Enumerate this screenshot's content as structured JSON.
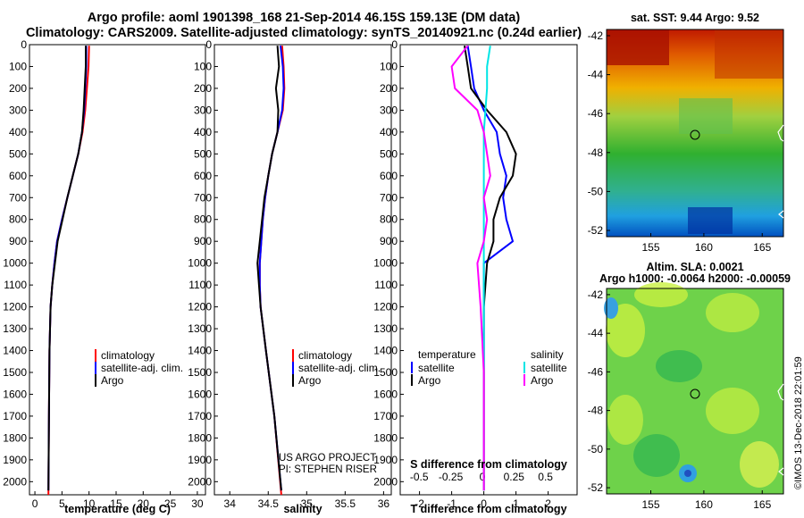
{
  "header": {
    "line1": "Argo profile: aoml 1901398_168 21-Sep-2014 46.15S 159.13E (DM data)",
    "line2": "Climatology: CARS2009. Satellite-adjusted climatology: synTS_20140921.nc (0.24d earlier)"
  },
  "colors": {
    "climatology": "#ff0000",
    "satellite": "#0000ff",
    "argo": "#000000",
    "satellite_salinity": "#00e5e5",
    "argo_salinity_diff": "#ff00ff"
  },
  "depth_axis": {
    "ylim": [
      0,
      2060
    ],
    "ticks": [
      0,
      100,
      200,
      300,
      400,
      500,
      600,
      700,
      800,
      900,
      1000,
      1100,
      1200,
      1300,
      1400,
      1500,
      1600,
      1700,
      1800,
      1900,
      2000
    ],
    "tick_labels": [
      "0",
      "100",
      "200",
      "300",
      "400",
      "500",
      "600",
      "700",
      "800",
      "900",
      "1000",
      "1100",
      "1200",
      "1300",
      "1400",
      "1500",
      "1600",
      "1700",
      "1800",
      "1900",
      "2000"
    ]
  },
  "legend_profile": [
    "climatology",
    "satellite-adj. clim.",
    "Argo"
  ],
  "legend_diff": {
    "temperature_heading": "temperature",
    "salinity_heading": "salinity",
    "items": [
      "satellite",
      "Argo"
    ]
  },
  "credits": {
    "line1": "US ARGO PROJECT",
    "line2": "PI: STEPHEN RISER"
  },
  "map_sst": {
    "title": "sat. SST: 9.44 Argo: 9.52",
    "xticks": [
      "155",
      "160",
      "165"
    ],
    "yticks": [
      "-42",
      "-44",
      "-46",
      "-48",
      "-50",
      "-52"
    ]
  },
  "map_sla": {
    "title1": "Altim. SLA: 0.0021",
    "title2": "Argo h1000: -0.0064 h2000: -0.00059",
    "xticks": [
      "155",
      "160",
      "165"
    ],
    "yticks": [
      "-42",
      "-44",
      "-46",
      "-48",
      "-50",
      "-52"
    ]
  },
  "stamp": "©IMOS 13-Dec-2018 22:01:59",
  "chart_data": [
    {
      "type": "line",
      "xlabel": "temperature (deg C)",
      "ylabel": "",
      "xlim": [
        -1,
        31.5
      ],
      "xticks": [
        0,
        5,
        10,
        15,
        20,
        25,
        30
      ],
      "xtick_labels": [
        "0",
        "5",
        "10",
        "15",
        "20",
        "25",
        "30"
      ],
      "y_reversed": true,
      "series": [
        {
          "name": "climatology",
          "color": "#ff0000",
          "x": [
            10.0,
            9.9,
            9.6,
            9.3,
            8.8,
            8.0,
            7.0,
            6.0,
            5.0,
            4.1,
            3.6,
            3.2,
            2.9,
            2.7,
            2.6,
            2.5
          ],
          "y": [
            5,
            100,
            200,
            300,
            400,
            500,
            600,
            700,
            800,
            900,
            1000,
            1100,
            1200,
            1400,
            1700,
            2060
          ]
        },
        {
          "name": "satellite-adj. clim.",
          "color": "#0000ff",
          "x": [
            9.5,
            9.5,
            9.3,
            9.1,
            8.7,
            8.0,
            7.0,
            6.0,
            5.0,
            4.1,
            3.6,
            3.2,
            2.9,
            2.7,
            2.6,
            2.5
          ],
          "y": [
            5,
            100,
            200,
            300,
            400,
            500,
            600,
            700,
            800,
            900,
            1000,
            1100,
            1200,
            1400,
            1700,
            2040
          ]
        },
        {
          "name": "Argo",
          "color": "#000000",
          "x": [
            9.4,
            9.4,
            9.2,
            9.0,
            8.7,
            8.0,
            7.0,
            6.0,
            5.1,
            4.2,
            3.7,
            3.2,
            2.9,
            2.7,
            2.6,
            2.5
          ],
          "y": [
            5,
            100,
            200,
            300,
            400,
            500,
            600,
            700,
            800,
            900,
            1000,
            1100,
            1200,
            1400,
            1700,
            2040
          ]
        }
      ]
    },
    {
      "type": "line",
      "xlabel": "salinity",
      "ylabel": "",
      "xlim": [
        33.8,
        36.1
      ],
      "xticks": [
        34,
        34.5,
        35,
        35.5,
        36
      ],
      "xtick_labels": [
        "34",
        "34.5",
        "35",
        "35.5",
        "36"
      ],
      "y_reversed": true,
      "series": [
        {
          "name": "climatology",
          "color": "#ff0000",
          "x": [
            34.68,
            34.7,
            34.71,
            34.69,
            34.62,
            34.55,
            34.5,
            34.46,
            34.43,
            34.41,
            34.39,
            34.39,
            34.4,
            34.47,
            34.58,
            34.67
          ],
          "y": [
            5,
            100,
            200,
            300,
            400,
            500,
            600,
            700,
            800,
            900,
            1000,
            1100,
            1200,
            1400,
            1700,
            2060
          ]
        },
        {
          "name": "satellite-adj. clim.",
          "color": "#0000ff",
          "x": [
            34.66,
            34.69,
            34.7,
            34.68,
            34.62,
            34.55,
            34.5,
            34.46,
            34.43,
            34.41,
            34.39,
            34.39,
            34.4,
            34.47,
            34.58,
            34.67
          ],
          "y": [
            5,
            100,
            200,
            300,
            400,
            500,
            600,
            700,
            800,
            900,
            1000,
            1100,
            1200,
            1400,
            1700,
            2040
          ]
        },
        {
          "name": "Argo",
          "color": "#000000",
          "x": [
            34.62,
            34.64,
            34.6,
            34.63,
            34.62,
            34.55,
            34.5,
            34.45,
            34.42,
            34.39,
            34.36,
            34.38,
            34.4,
            34.47,
            34.58,
            34.67
          ],
          "y": [
            5,
            100,
            200,
            300,
            400,
            500,
            600,
            700,
            800,
            900,
            1000,
            1100,
            1200,
            1400,
            1700,
            2040
          ]
        }
      ]
    },
    {
      "type": "line",
      "xlabel": "T difference from climatology",
      "ylabel": "",
      "xlim": [
        -2.6,
        2.9
      ],
      "xticks": [
        -2,
        -1,
        0,
        1,
        2
      ],
      "xtick_labels": [
        "-2",
        "-1",
        "0",
        "1",
        "2"
      ],
      "secondary_xlabel": "S difference from climatology",
      "secondary_xticks": [
        -0.5,
        -0.25,
        0,
        0.25,
        0.5
      ],
      "secondary_xtick_labels": [
        "-0.5",
        "-0.25",
        "0",
        "0.25",
        "0.5"
      ],
      "y_reversed": true,
      "series": [
        {
          "name": "temperature satellite",
          "color": "#0000ff",
          "x": [
            -0.5,
            -0.4,
            -0.3,
            0.0,
            0.4,
            0.5,
            0.7,
            0.6,
            0.7,
            0.9,
            0.0,
            0.0,
            0.0,
            0.0,
            0.0
          ],
          "y": [
            5,
            100,
            200,
            300,
            400,
            500,
            600,
            700,
            800,
            900,
            1000,
            1200,
            1500,
            1800,
            2040
          ]
        },
        {
          "name": "temperature Argo",
          "color": "#000000",
          "x": [
            -0.6,
            -0.5,
            -0.4,
            0.1,
            0.7,
            1.0,
            0.9,
            0.5,
            0.3,
            0.3,
            0.1,
            0.0,
            0.0,
            0.0,
            0.0
          ],
          "y": [
            5,
            100,
            200,
            300,
            400,
            500,
            600,
            700,
            800,
            900,
            1000,
            1200,
            1500,
            1800,
            2040
          ]
        },
        {
          "name": "salinity satellite",
          "color": "#00e5e5",
          "x": [
            0.2,
            0.1,
            0.1,
            0.05,
            0.0,
            0.0,
            0.0,
            0.0,
            0.0,
            0.0,
            0.0,
            0.0,
            0.0,
            0.0,
            0.0
          ],
          "y": [
            5,
            100,
            200,
            300,
            400,
            500,
            600,
            700,
            800,
            900,
            1000,
            1200,
            1500,
            1800,
            2040
          ]
        },
        {
          "name": "salinity Argo",
          "color": "#ff00ff",
          "x": [
            -0.5,
            -1.0,
            -0.9,
            -0.2,
            0.0,
            0.1,
            0.2,
            0.0,
            0.1,
            0.0,
            -0.2,
            -0.1,
            0.0,
            0.0,
            0.0
          ],
          "y": [
            5,
            100,
            200,
            300,
            400,
            500,
            600,
            700,
            800,
            900,
            1000,
            1200,
            1500,
            1800,
            2040
          ]
        }
      ]
    }
  ]
}
